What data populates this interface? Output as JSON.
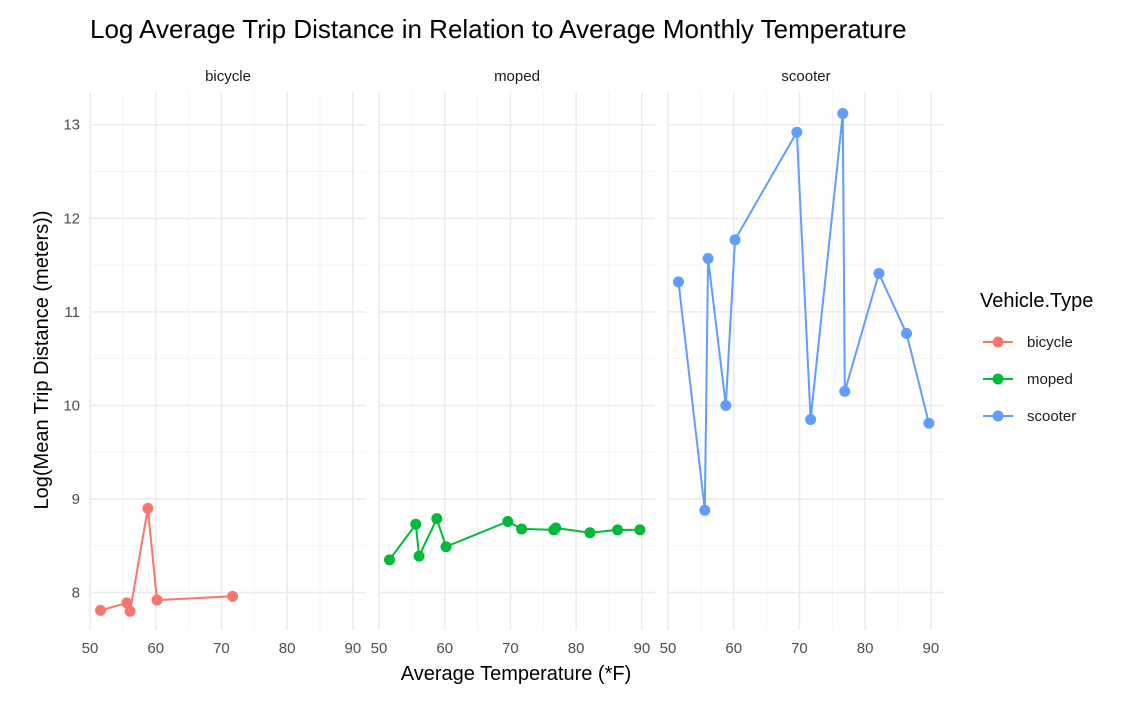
{
  "chart_data": {
    "type": "line",
    "title": "Log Average Trip Distance in Relation to Average Monthly Temperature",
    "xlabel": "Average Temperature (*F)",
    "ylabel": "Log(Mean Trip Distance (meters))",
    "xlim": [
      50,
      92
    ],
    "ylim": [
      7.6,
      13.35
    ],
    "x_ticks": [
      50,
      60,
      70,
      80,
      90
    ],
    "y_ticks": [
      8,
      9,
      10,
      11,
      12,
      13
    ],
    "grid": true,
    "legend": {
      "title": "Vehicle.Type",
      "position": "right"
    },
    "panels": [
      {
        "name": "bicycle",
        "color": "#F8766D",
        "points": [
          {
            "x": 51.6,
            "y": 7.81
          },
          {
            "x": 55.6,
            "y": 7.89
          },
          {
            "x": 56.1,
            "y": 7.8
          },
          {
            "x": 58.8,
            "y": 8.9
          },
          {
            "x": 60.2,
            "y": 7.92
          },
          {
            "x": 71.7,
            "y": 7.96
          }
        ]
      },
      {
        "name": "moped",
        "color": "#00BA38",
        "points": [
          {
            "x": 51.6,
            "y": 8.35
          },
          {
            "x": 55.6,
            "y": 8.73
          },
          {
            "x": 56.1,
            "y": 8.39
          },
          {
            "x": 58.8,
            "y": 8.79
          },
          {
            "x": 60.2,
            "y": 8.49
          },
          {
            "x": 69.6,
            "y": 8.76
          },
          {
            "x": 71.7,
            "y": 8.68
          },
          {
            "x": 76.6,
            "y": 8.67
          },
          {
            "x": 76.9,
            "y": 8.69
          },
          {
            "x": 82.1,
            "y": 8.64
          },
          {
            "x": 86.3,
            "y": 8.67
          },
          {
            "x": 89.7,
            "y": 8.67
          }
        ]
      },
      {
        "name": "scooter",
        "color": "#619CFF",
        "points": [
          {
            "x": 51.6,
            "y": 11.32
          },
          {
            "x": 55.6,
            "y": 8.88
          },
          {
            "x": 56.1,
            "y": 11.57
          },
          {
            "x": 58.8,
            "y": 10.0
          },
          {
            "x": 60.2,
            "y": 11.77
          },
          {
            "x": 69.6,
            "y": 12.92
          },
          {
            "x": 71.7,
            "y": 9.85
          },
          {
            "x": 76.6,
            "y": 13.12
          },
          {
            "x": 76.9,
            "y": 10.15
          },
          {
            "x": 82.1,
            "y": 11.41
          },
          {
            "x": 86.3,
            "y": 10.77
          },
          {
            "x": 89.7,
            "y": 9.81
          }
        ]
      }
    ]
  }
}
